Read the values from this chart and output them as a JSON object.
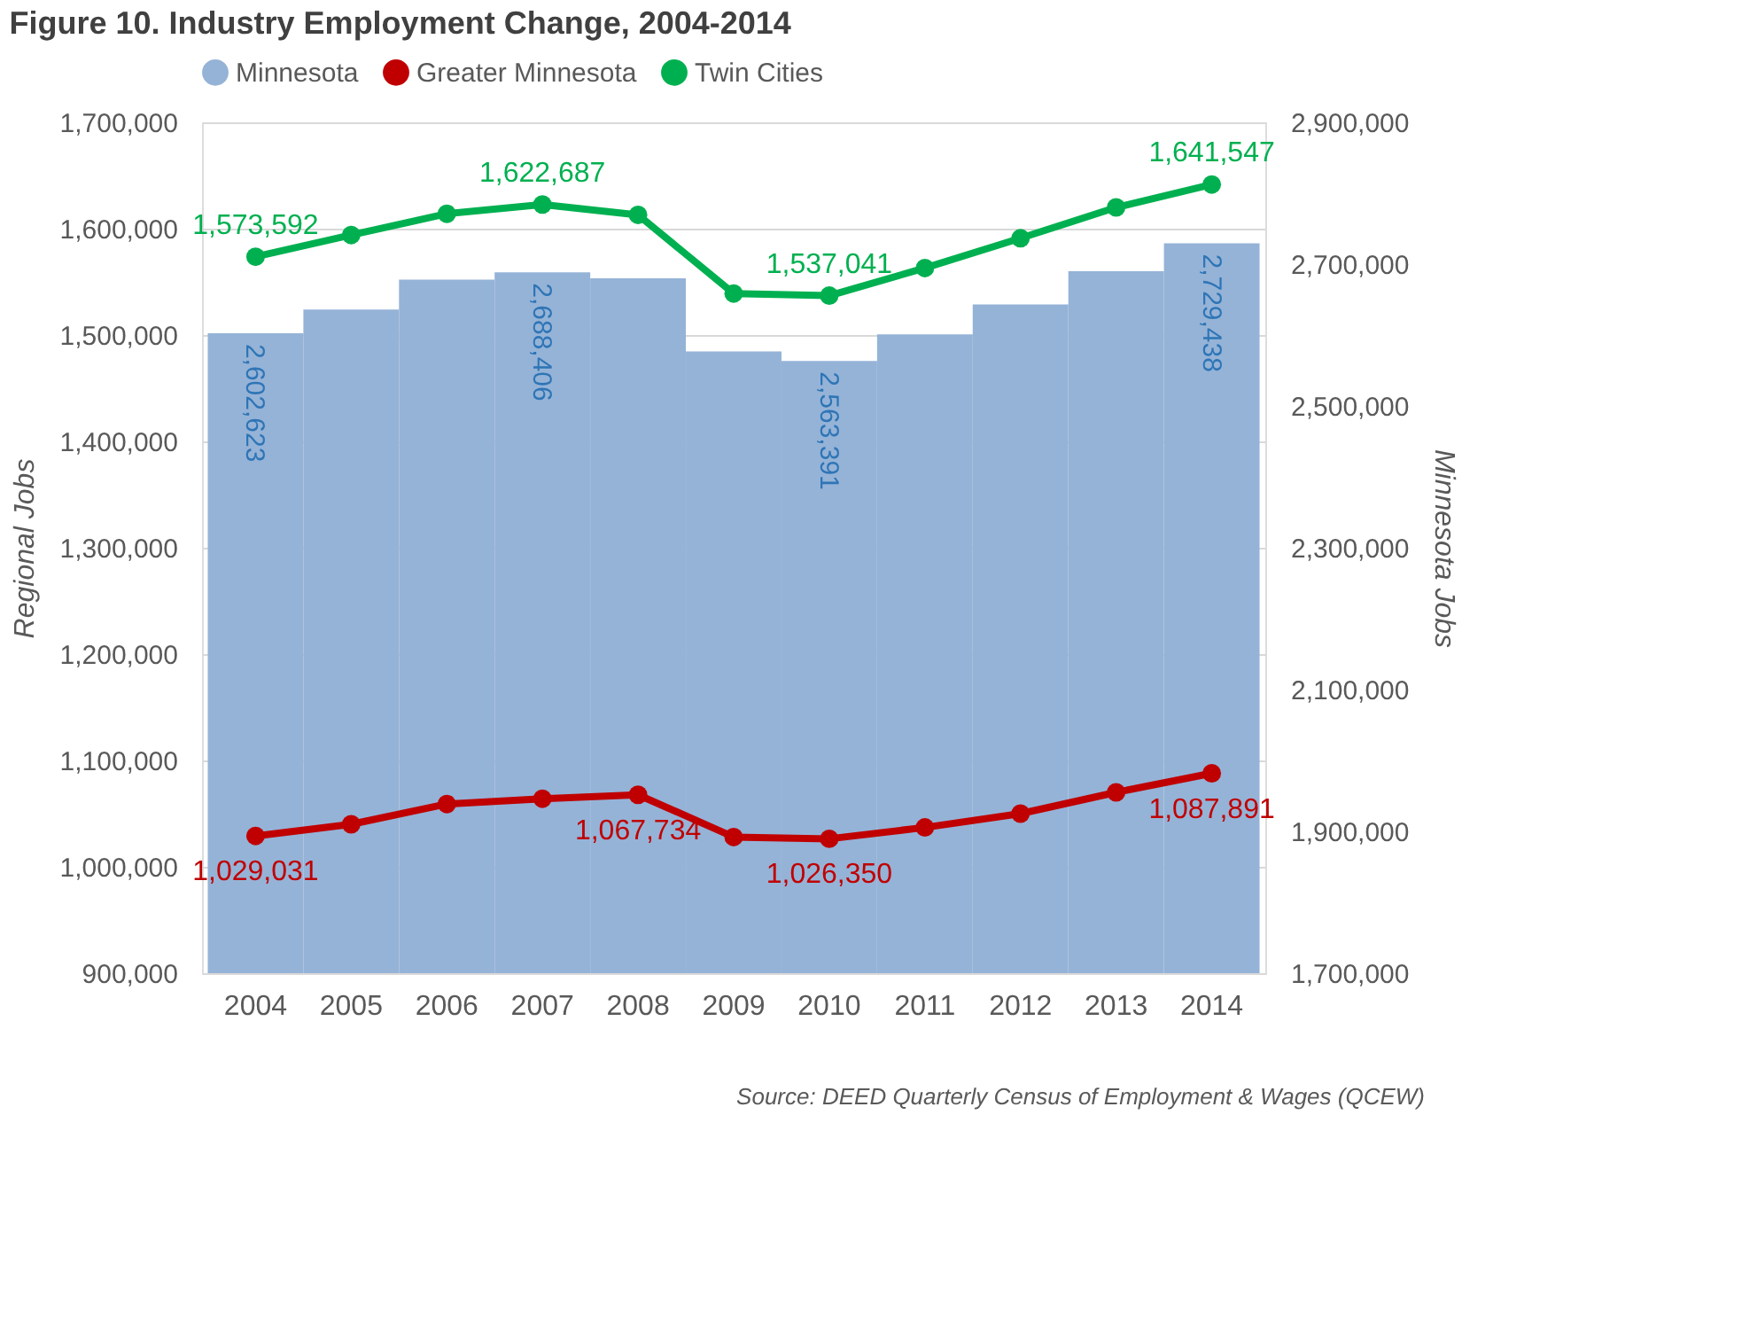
{
  "chart_data": {
    "type": "bar",
    "title": "Figure 10. Industry Employment Change, 2004-2014",
    "ylabel": "Regional Jobs",
    "y2label": "Minnesota Jobs",
    "categories": [
      "2004",
      "2005",
      "2006",
      "2007",
      "2008",
      "2009",
      "2010",
      "2011",
      "2012",
      "2013",
      "2014"
    ],
    "series": [
      {
        "name": "Minnesota",
        "axis": "y2",
        "color": "#95b3d7",
        "values": [
          2602623,
          2636000,
          2678000,
          2688406,
          2680000,
          2577000,
          2563391,
          2601000,
          2643000,
          2690000,
          2729438
        ],
        "value_labels": [
          "2,602,623",
          null,
          null,
          "2,688,406",
          null,
          null,
          "2,563,391",
          null,
          null,
          null,
          "2,729,438"
        ]
      },
      {
        "name": "Greater Minnesota",
        "type": "line",
        "color": "#c00000",
        "values": [
          1029031,
          1040000,
          1059000,
          1064000,
          1067734,
          1028000,
          1026350,
          1037000,
          1050000,
          1070000,
          1087891
        ],
        "value_labels": [
          "1,029,031",
          null,
          null,
          null,
          "1,067,734",
          null,
          "1,026,350",
          null,
          null,
          null,
          "1,087,891"
        ]
      },
      {
        "name": "Twin Cities",
        "type": "line",
        "color": "#00b050",
        "values": [
          1573592,
          1594000,
          1614000,
          1622687,
          1613000,
          1539000,
          1537041,
          1563000,
          1591000,
          1620000,
          1641547
        ],
        "value_labels": [
          "1,573,592",
          null,
          null,
          "1,622,687",
          null,
          null,
          "1,537,041",
          null,
          null,
          null,
          "1,641,547"
        ]
      }
    ],
    "ylim": [
      900000,
      1700000
    ],
    "yticks": [
      {
        "value": 900000,
        "label": "900,000"
      },
      {
        "value": 1000000,
        "label": "1,000,000"
      },
      {
        "value": 1100000,
        "label": "1,100,000"
      },
      {
        "value": 1200000,
        "label": "1,200,000"
      },
      {
        "value": 1300000,
        "label": "1,300,000"
      },
      {
        "value": 1400000,
        "label": "1,400,000"
      },
      {
        "value": 1500000,
        "label": "1,500,000"
      },
      {
        "value": 1600000,
        "label": "1,600,000"
      },
      {
        "value": 1700000,
        "label": "1,700,000"
      }
    ],
    "y2lim": [
      1700000,
      2900000
    ],
    "y2ticks": [
      {
        "value": 1700000,
        "label": "1,700,000"
      },
      {
        "value": 1900000,
        "label": "1,900,000"
      },
      {
        "value": 2100000,
        "label": "2,100,000"
      },
      {
        "value": 2300000,
        "label": "2,300,000"
      },
      {
        "value": 2500000,
        "label": "2,500,000"
      },
      {
        "value": 2700000,
        "label": "2,700,000"
      },
      {
        "value": 2900000,
        "label": "2,900,000"
      }
    ],
    "grid": "y",
    "legend": "top",
    "marker": "circle",
    "annotations": [
      "Source: DEED Quarterly Census of Employment & Wages (QCEW)"
    ]
  }
}
